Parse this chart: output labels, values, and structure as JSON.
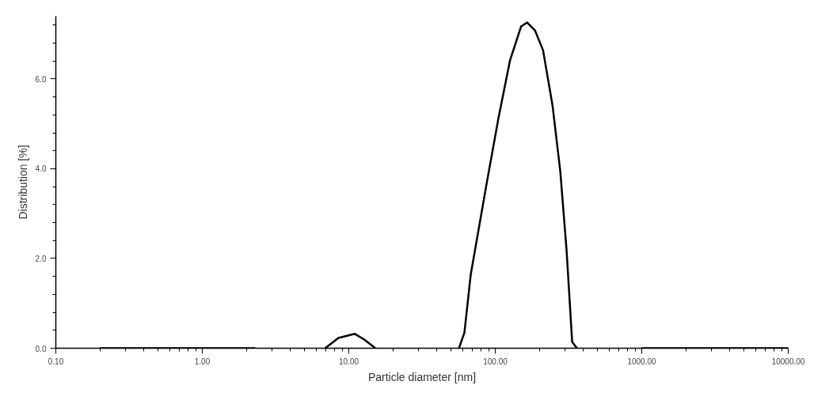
{
  "chart_data": {
    "type": "line",
    "xlabel": "Particle diameter [nm]",
    "ylabel": "Distribution [%]",
    "log": "x",
    "xlim": [
      0.1,
      10000
    ],
    "xticks": [
      {
        "value": 0.1,
        "label": "0.10"
      },
      {
        "value": 1,
        "label": "1.00"
      },
      {
        "value": 10,
        "label": "10.00"
      },
      {
        "value": 100,
        "label": "100.00"
      },
      {
        "value": 1000,
        "label": "1000.00"
      },
      {
        "value": 10000,
        "label": "10000.00"
      }
    ],
    "ylim": [
      0,
      7.4
    ],
    "yticks": [
      {
        "value": 0,
        "label": "0.0"
      },
      {
        "value": 2,
        "label": "2.0"
      },
      {
        "value": 4,
        "label": "4.0"
      },
      {
        "value": 6,
        "label": "6.0"
      }
    ],
    "grid": false,
    "marker": "none",
    "line_style": "solid",
    "series": [
      {
        "color": "#000000",
        "x": [
          0.2,
          0.5,
          1,
          2.3,
          4,
          6.9,
          8.5,
          11,
          12.8,
          15.2,
          30,
          56.5,
          61.6,
          68,
          87,
          105,
          126,
          150,
          165,
          187,
          212,
          246,
          278,
          307,
          335,
          361,
          600,
          1000,
          3000,
          10000
        ],
        "values": [
          0,
          0,
          0,
          0,
          null,
          0,
          0.23,
          0.32,
          0.19,
          0,
          null,
          0,
          0.35,
          1.64,
          3.64,
          5.12,
          6.41,
          7.17,
          7.26,
          7.08,
          6.64,
          5.41,
          3.94,
          2.17,
          0.14,
          0,
          null,
          0,
          0,
          0
        ]
      }
    ]
  }
}
